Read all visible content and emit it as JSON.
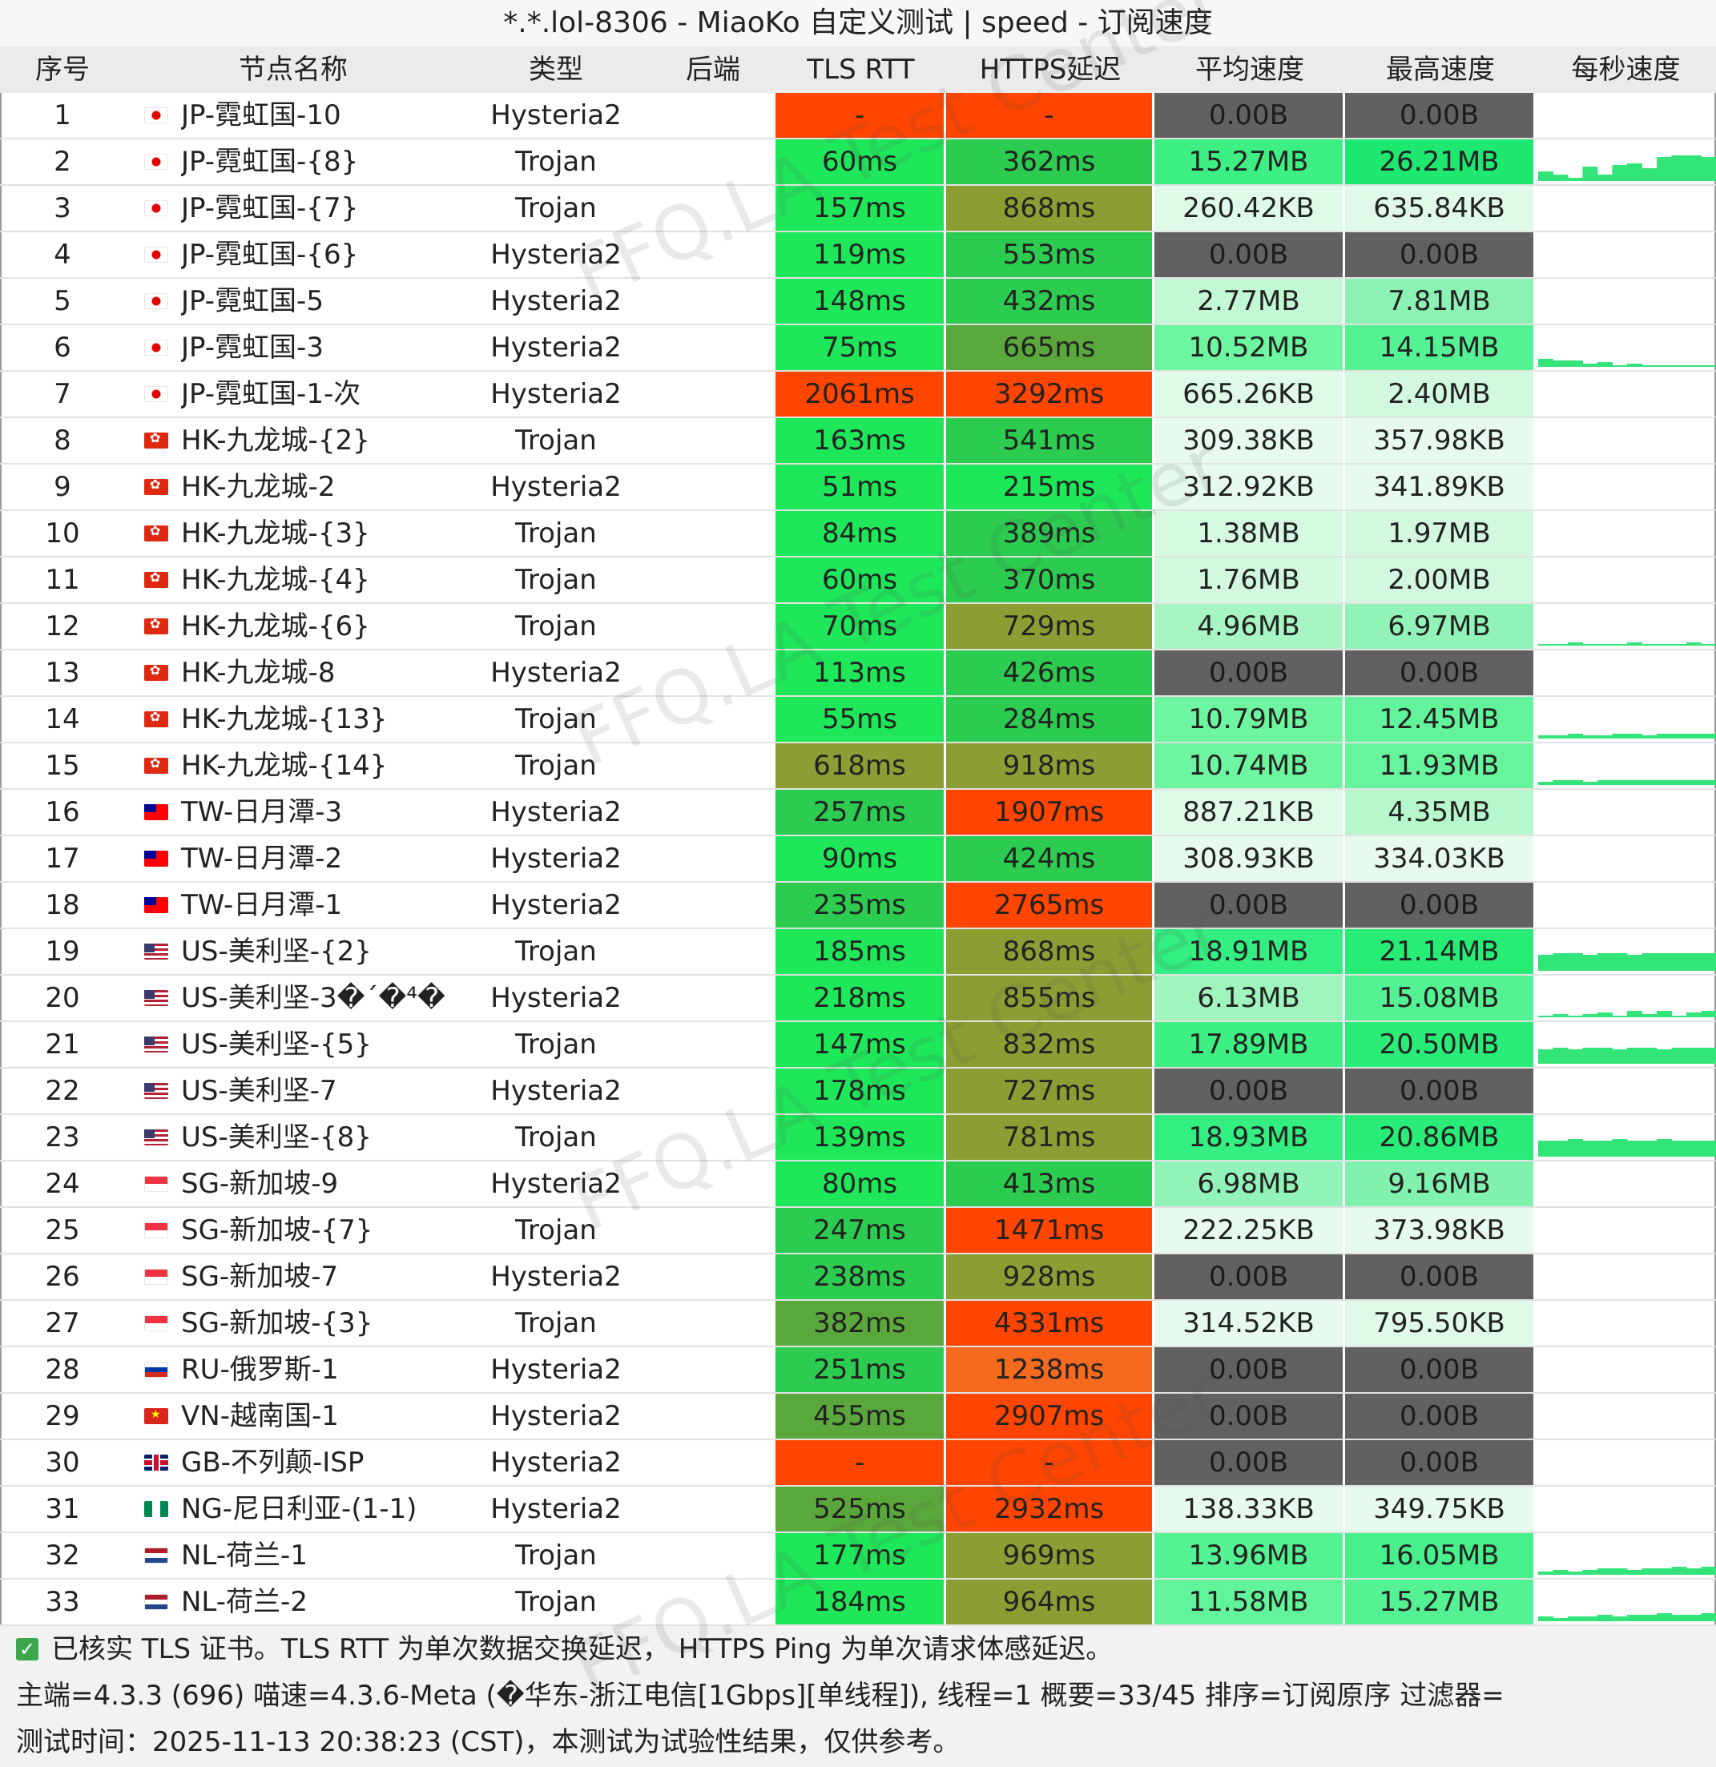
{
  "window": {
    "title": "*.*.lol-8306 - MiaoKo 自定义测试 | speed - 订阅速度"
  },
  "columns": {
    "index": "序号",
    "name": "节点名称",
    "type": "类型",
    "backend": "后端",
    "tls_rtt": "TLS RTT",
    "https_latency": "HTTPS延迟",
    "avg_speed": "平均速度",
    "max_speed": "最高速度",
    "per_second": "每秒速度"
  },
  "colors": {
    "red": "#ff4500",
    "orange": "#f56a1e",
    "olive": "#8c9e33",
    "green_mid": "#2ccc50",
    "green_bright": "#1ee85a",
    "dark_gray": "#616161",
    "speed_bright": "#1ee870",
    "speed_mid": "#6df5a0",
    "speed_light": "#b7f7cc",
    "speed_pale": "#e0faea",
    "spark": "#33e478"
  },
  "watermark": "FFQ.LA Test Center",
  "rows": [
    {
      "index": "1",
      "flag": "jp",
      "name": "JP-霓虹国-10",
      "type": "Hysteria2",
      "backend": "",
      "tls": "-",
      "https": "-",
      "avg": "0.00B",
      "max": "0.00B",
      "tlsColor": "#ff4500",
      "httpsColor": "#ff4500",
      "avgColor": "#616161",
      "maxColor": "#616161",
      "spark": []
    },
    {
      "index": "2",
      "flag": "jp",
      "name": "JP-霓虹国-{8}",
      "type": "Trojan",
      "backend": "",
      "tls": "60ms",
      "https": "362ms",
      "avg": "15.27MB",
      "max": "26.21MB",
      "tlsColor": "#1ee85a",
      "httpsColor": "#2ccc50",
      "avgColor": "#3ef084",
      "maxColor": "#1ee870",
      "spark": [
        0.3,
        0.2,
        0.1,
        0.45,
        0.2,
        0.5,
        0.55,
        0.4,
        0.75,
        0.8,
        0.8,
        0.75
      ]
    },
    {
      "index": "3",
      "flag": "jp",
      "name": "JP-霓虹国-{7}",
      "type": "Trojan",
      "backend": "",
      "tls": "157ms",
      "https": "868ms",
      "avg": "260.42KB",
      "max": "635.84KB",
      "tlsColor": "#1ee85a",
      "httpsColor": "#8c9e33",
      "avgColor": "#e0faea",
      "maxColor": "#e0faea",
      "spark": []
    },
    {
      "index": "4",
      "flag": "jp",
      "name": "JP-霓虹国-{6}",
      "type": "Hysteria2",
      "backend": "",
      "tls": "119ms",
      "https": "553ms",
      "avg": "0.00B",
      "max": "0.00B",
      "tlsColor": "#1ee85a",
      "httpsColor": "#2ccc50",
      "avgColor": "#616161",
      "maxColor": "#616161",
      "spark": []
    },
    {
      "index": "5",
      "flag": "jp",
      "name": "JP-霓虹国-5",
      "type": "Hysteria2",
      "backend": "",
      "tls": "148ms",
      "https": "432ms",
      "avg": "2.77MB",
      "max": "7.81MB",
      "tlsColor": "#1ee85a",
      "httpsColor": "#2ccc50",
      "avgColor": "#c3f8d5",
      "maxColor": "#8cf2b4",
      "spark": []
    },
    {
      "index": "6",
      "flag": "jp",
      "name": "JP-霓虹国-3",
      "type": "Hysteria2",
      "backend": "",
      "tls": "75ms",
      "https": "665ms",
      "avg": "10.52MB",
      "max": "14.15MB",
      "tlsColor": "#1ee85a",
      "httpsColor": "#5aa83c",
      "avgColor": "#6df5a0",
      "maxColor": "#55f293",
      "spark": [
        0.25,
        0.2,
        0.2,
        0.1,
        0.15,
        0.05,
        0.1,
        0.05,
        0.05,
        0.05,
        0.05,
        0.05
      ]
    },
    {
      "index": "7",
      "flag": "jp",
      "name": "JP-霓虹国-1-次",
      "type": "Hysteria2",
      "backend": "",
      "tls": "2061ms",
      "https": "3292ms",
      "avg": "665.26KB",
      "max": "2.40MB",
      "tlsColor": "#ff4500",
      "httpsColor": "#ff4500",
      "avgColor": "#e0faea",
      "maxColor": "#d2f8df",
      "spark": []
    },
    {
      "index": "8",
      "flag": "hk",
      "name": "HK-九龙城-{2}",
      "type": "Trojan",
      "backend": "",
      "tls": "163ms",
      "https": "541ms",
      "avg": "309.38KB",
      "max": "357.98KB",
      "tlsColor": "#1ee85a",
      "httpsColor": "#2ccc50",
      "avgColor": "#e6fbee",
      "maxColor": "#e6fbee",
      "spark": []
    },
    {
      "index": "9",
      "flag": "hk",
      "name": "HK-九龙城-2",
      "type": "Hysteria2",
      "backend": "",
      "tls": "51ms",
      "https": "215ms",
      "avg": "312.92KB",
      "max": "341.89KB",
      "tlsColor": "#1ee85a",
      "httpsColor": "#1ee85a",
      "avgColor": "#e6fbee",
      "maxColor": "#e6fbee",
      "spark": []
    },
    {
      "index": "10",
      "flag": "hk",
      "name": "HK-九龙城-{3}",
      "type": "Trojan",
      "backend": "",
      "tls": "84ms",
      "https": "389ms",
      "avg": "1.38MB",
      "max": "1.97MB",
      "tlsColor": "#1ee85a",
      "httpsColor": "#2ccc50",
      "avgColor": "#d6f9e2",
      "maxColor": "#d2f8df",
      "spark": []
    },
    {
      "index": "11",
      "flag": "hk",
      "name": "HK-九龙城-{4}",
      "type": "Trojan",
      "backend": "",
      "tls": "60ms",
      "https": "370ms",
      "avg": "1.76MB",
      "max": "2.00MB",
      "tlsColor": "#1ee85a",
      "httpsColor": "#2ccc50",
      "avgColor": "#d2f8df",
      "maxColor": "#d2f8df",
      "spark": []
    },
    {
      "index": "12",
      "flag": "hk",
      "name": "HK-九龙城-{6}",
      "type": "Trojan",
      "backend": "",
      "tls": "70ms",
      "https": "729ms",
      "avg": "4.96MB",
      "max": "6.97MB",
      "tlsColor": "#1ee85a",
      "httpsColor": "#8c9e33",
      "avgColor": "#a8f5c4",
      "maxColor": "#92f3b8",
      "spark": [
        0.05,
        0.05,
        0.1,
        0.05,
        0.05,
        0.05,
        0.1,
        0.05,
        0.05,
        0.05,
        0.1,
        0.05
      ]
    },
    {
      "index": "13",
      "flag": "hk",
      "name": "HK-九龙城-8",
      "type": "Hysteria2",
      "backend": "",
      "tls": "113ms",
      "https": "426ms",
      "avg": "0.00B",
      "max": "0.00B",
      "tlsColor": "#1ee85a",
      "httpsColor": "#2ccc50",
      "avgColor": "#616161",
      "maxColor": "#616161",
      "spark": []
    },
    {
      "index": "14",
      "flag": "hk",
      "name": "HK-九龙城-{13}",
      "type": "Trojan",
      "backend": "",
      "tls": "55ms",
      "https": "284ms",
      "avg": "10.79MB",
      "max": "12.45MB",
      "tlsColor": "#1ee85a",
      "httpsColor": "#2ccc50",
      "avgColor": "#6df5a0",
      "maxColor": "#62f49a",
      "spark": [
        0.1,
        0.1,
        0.15,
        0.1,
        0.1,
        0.15,
        0.15,
        0.1,
        0.15,
        0.15,
        0.15,
        0.15
      ]
    },
    {
      "index": "15",
      "flag": "hk",
      "name": "HK-九龙城-{14}",
      "type": "Trojan",
      "backend": "",
      "tls": "618ms",
      "https": "918ms",
      "avg": "10.74MB",
      "max": "11.93MB",
      "tlsColor": "#8c9e33",
      "httpsColor": "#8c9e33",
      "avgColor": "#6df5a0",
      "maxColor": "#66f49c",
      "spark": [
        0.1,
        0.15,
        0.15,
        0.1,
        0.15,
        0.15,
        0.15,
        0.15,
        0.15,
        0.15,
        0.15,
        0.15
      ]
    },
    {
      "index": "16",
      "flag": "tw",
      "name": "TW-日月潭-3",
      "type": "Hysteria2",
      "backend": "",
      "tls": "257ms",
      "https": "1907ms",
      "avg": "887.21KB",
      "max": "4.35MB",
      "tlsColor": "#2ccc50",
      "httpsColor": "#ff4500",
      "avgColor": "#e0faea",
      "maxColor": "#b7f7cc",
      "spark": []
    },
    {
      "index": "17",
      "flag": "tw",
      "name": "TW-日月潭-2",
      "type": "Hysteria2",
      "backend": "",
      "tls": "90ms",
      "https": "424ms",
      "avg": "308.93KB",
      "max": "334.03KB",
      "tlsColor": "#1ee85a",
      "httpsColor": "#2ccc50",
      "avgColor": "#e6fbee",
      "maxColor": "#e6fbee",
      "spark": []
    },
    {
      "index": "18",
      "flag": "tw",
      "name": "TW-日月潭-1",
      "type": "Hysteria2",
      "backend": "",
      "tls": "235ms",
      "https": "2765ms",
      "avg": "0.00B",
      "max": "0.00B",
      "tlsColor": "#2ccc50",
      "httpsColor": "#ff4500",
      "avgColor": "#616161",
      "maxColor": "#616161",
      "spark": []
    },
    {
      "index": "19",
      "flag": "us",
      "name": "US-美利坚-{2}",
      "type": "Trojan",
      "backend": "",
      "tls": "185ms",
      "https": "868ms",
      "avg": "18.91MB",
      "max": "21.14MB",
      "tlsColor": "#1ee85a",
      "httpsColor": "#8c9e33",
      "avgColor": "#33ee80",
      "maxColor": "#27ec76",
      "spark": [
        0.5,
        0.55,
        0.55,
        0.5,
        0.55,
        0.55,
        0.5,
        0.55,
        0.55,
        0.55,
        0.55,
        0.55
      ]
    },
    {
      "index": "20",
      "flag": "us",
      "name": "US-美利坚-3�´�⁴�",
      "type": "Hysteria2",
      "backend": "",
      "tls": "218ms",
      "https": "855ms",
      "avg": "6.13MB",
      "max": "15.08MB",
      "tlsColor": "#1ee85a",
      "httpsColor": "#8c9e33",
      "avgColor": "#a0f4be",
      "maxColor": "#55f293",
      "spark": [
        0.05,
        0.1,
        0.05,
        0.1,
        0.15,
        0.05,
        0.2,
        0.1,
        0.2,
        0.05,
        0.15,
        0.2
      ]
    },
    {
      "index": "21",
      "flag": "us",
      "name": "US-美利坚-{5}",
      "type": "Trojan",
      "backend": "",
      "tls": "147ms",
      "https": "832ms",
      "avg": "17.89MB",
      "max": "20.50MB",
      "tlsColor": "#1ee85a",
      "httpsColor": "#8c9e33",
      "avgColor": "#3ef084",
      "maxColor": "#2aec78",
      "spark": [
        0.45,
        0.5,
        0.45,
        0.5,
        0.5,
        0.45,
        0.5,
        0.5,
        0.45,
        0.5,
        0.5,
        0.5
      ]
    },
    {
      "index": "22",
      "flag": "us",
      "name": "US-美利坚-7",
      "type": "Hysteria2",
      "backend": "",
      "tls": "178ms",
      "https": "727ms",
      "avg": "0.00B",
      "max": "0.00B",
      "tlsColor": "#1ee85a",
      "httpsColor": "#8c9e33",
      "avgColor": "#616161",
      "maxColor": "#616161",
      "spark": []
    },
    {
      "index": "23",
      "flag": "us",
      "name": "US-美利坚-{8}",
      "type": "Trojan",
      "backend": "",
      "tls": "139ms",
      "https": "781ms",
      "avg": "18.93MB",
      "max": "20.86MB",
      "tlsColor": "#1ee85a",
      "httpsColor": "#8c9e33",
      "avgColor": "#33ee80",
      "maxColor": "#2aec78",
      "spark": [
        0.5,
        0.5,
        0.55,
        0.5,
        0.5,
        0.55,
        0.5,
        0.5,
        0.55,
        0.5,
        0.5,
        0.5
      ]
    },
    {
      "index": "24",
      "flag": "sg",
      "name": "SG-新加坡-9",
      "type": "Hysteria2",
      "backend": "",
      "tls": "80ms",
      "https": "413ms",
      "avg": "6.98MB",
      "max": "9.16MB",
      "tlsColor": "#1ee85a",
      "httpsColor": "#2ccc50",
      "avgColor": "#92f3b8",
      "maxColor": "#80f2ae",
      "spark": []
    },
    {
      "index": "25",
      "flag": "sg",
      "name": "SG-新加坡-{7}",
      "type": "Trojan",
      "backend": "",
      "tls": "247ms",
      "https": "1471ms",
      "avg": "222.25KB",
      "max": "373.98KB",
      "tlsColor": "#2ccc50",
      "httpsColor": "#ff4500",
      "avgColor": "#e6fbee",
      "maxColor": "#e6fbee",
      "spark": []
    },
    {
      "index": "26",
      "flag": "sg",
      "name": "SG-新加坡-7",
      "type": "Hysteria2",
      "backend": "",
      "tls": "238ms",
      "https": "928ms",
      "avg": "0.00B",
      "max": "0.00B",
      "tlsColor": "#2ccc50",
      "httpsColor": "#8c9e33",
      "avgColor": "#616161",
      "maxColor": "#616161",
      "spark": []
    },
    {
      "index": "27",
      "flag": "sg",
      "name": "SG-新加坡-{3}",
      "type": "Trojan",
      "backend": "",
      "tls": "382ms",
      "https": "4331ms",
      "avg": "314.52KB",
      "max": "795.50KB",
      "tlsColor": "#5aa83c",
      "httpsColor": "#ff4500",
      "avgColor": "#e6fbee",
      "maxColor": "#e0faea",
      "spark": []
    },
    {
      "index": "28",
      "flag": "ru",
      "name": "RU-俄罗斯-1",
      "type": "Hysteria2",
      "backend": "",
      "tls": "251ms",
      "https": "1238ms",
      "avg": "0.00B",
      "max": "0.00B",
      "tlsColor": "#2ccc50",
      "httpsColor": "#f56a1e",
      "avgColor": "#616161",
      "maxColor": "#616161",
      "spark": []
    },
    {
      "index": "29",
      "flag": "vn",
      "name": "VN-越南国-1",
      "type": "Hysteria2",
      "backend": "",
      "tls": "455ms",
      "https": "2907ms",
      "avg": "0.00B",
      "max": "0.00B",
      "tlsColor": "#5aa83c",
      "httpsColor": "#ff4500",
      "avgColor": "#616161",
      "maxColor": "#616161",
      "spark": []
    },
    {
      "index": "30",
      "flag": "gb",
      "name": "GB-不列颠-ISP",
      "type": "Hysteria2",
      "backend": "",
      "tls": "-",
      "https": "-",
      "avg": "0.00B",
      "max": "0.00B",
      "tlsColor": "#ff4500",
      "httpsColor": "#ff4500",
      "avgColor": "#616161",
      "maxColor": "#616161",
      "spark": []
    },
    {
      "index": "31",
      "flag": "ng",
      "name": "NG-尼日利亚-(1-1)",
      "type": "Hysteria2",
      "backend": "",
      "tls": "525ms",
      "https": "2932ms",
      "avg": "138.33KB",
      "max": "349.75KB",
      "tlsColor": "#5aa83c",
      "httpsColor": "#ff4500",
      "avgColor": "#e6fbee",
      "maxColor": "#e6fbee",
      "spark": []
    },
    {
      "index": "32",
      "flag": "nl",
      "name": "NL-荷兰-1",
      "type": "Trojan",
      "backend": "",
      "tls": "177ms",
      "https": "969ms",
      "avg": "13.96MB",
      "max": "16.05MB",
      "tlsColor": "#1ee85a",
      "httpsColor": "#8c9e33",
      "avgColor": "#55f293",
      "maxColor": "#48f08c",
      "spark": [
        0.1,
        0.15,
        0.1,
        0.15,
        0.2,
        0.2,
        0.15,
        0.2,
        0.2,
        0.25,
        0.2,
        0.25
      ]
    },
    {
      "index": "33",
      "flag": "nl",
      "name": "NL-荷兰-2",
      "type": "Trojan",
      "backend": "",
      "tls": "184ms",
      "https": "964ms",
      "avg": "11.58MB",
      "max": "15.27MB",
      "tlsColor": "#1ee85a",
      "httpsColor": "#8c9e33",
      "avgColor": "#62f49a",
      "maxColor": "#55f293",
      "spark": [
        0.15,
        0.1,
        0.15,
        0.15,
        0.2,
        0.15,
        0.2,
        0.2,
        0.25,
        0.2,
        0.2,
        0.25
      ]
    }
  ],
  "footer": {
    "line1": "已核实 TLS 证书。TLS RTT 为单次数据交换延迟， HTTPS Ping 为单次请求体感延迟。",
    "line2": "主端=4.3.3 (696) 喵速=4.3.6-Meta (�华东-浙江电信[1Gbps][单线程]), 线程=1 概要=33/45 排序=订阅原序 过滤器=",
    "line3": "测试时间：2025-11-13 20:38:23 (CST)，本测试为试验性结果，仅供参考。"
  }
}
